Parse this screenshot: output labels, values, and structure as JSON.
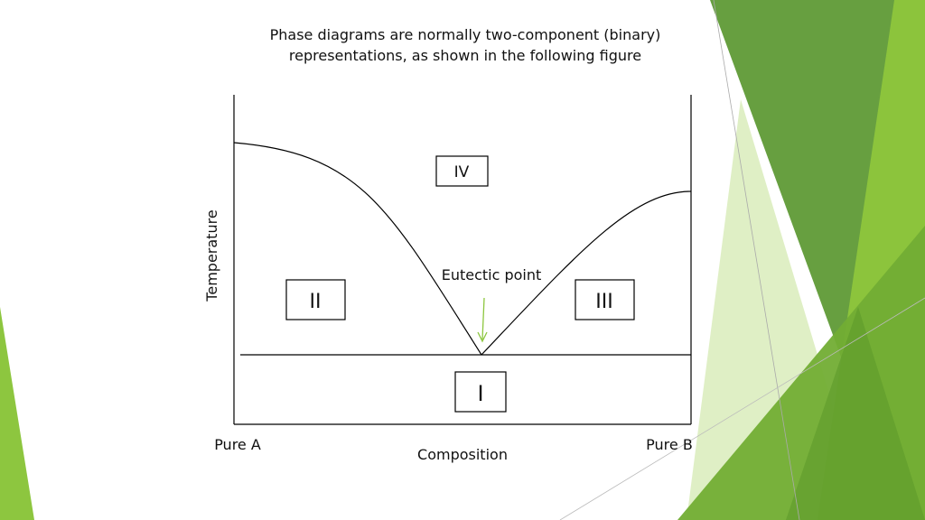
{
  "header": {
    "title_lines": [
      "Phase diagrams are normally two-component (binary)",
      "representations, as shown in the following figure"
    ]
  },
  "diagram": {
    "y_axis_label": "Temperature",
    "x_axis_label": "Composition",
    "left_end": "Pure A",
    "right_end": "Pure B",
    "regions": [
      "I",
      "II",
      "III",
      "IV"
    ],
    "annotation": "Eutectic point"
  }
}
